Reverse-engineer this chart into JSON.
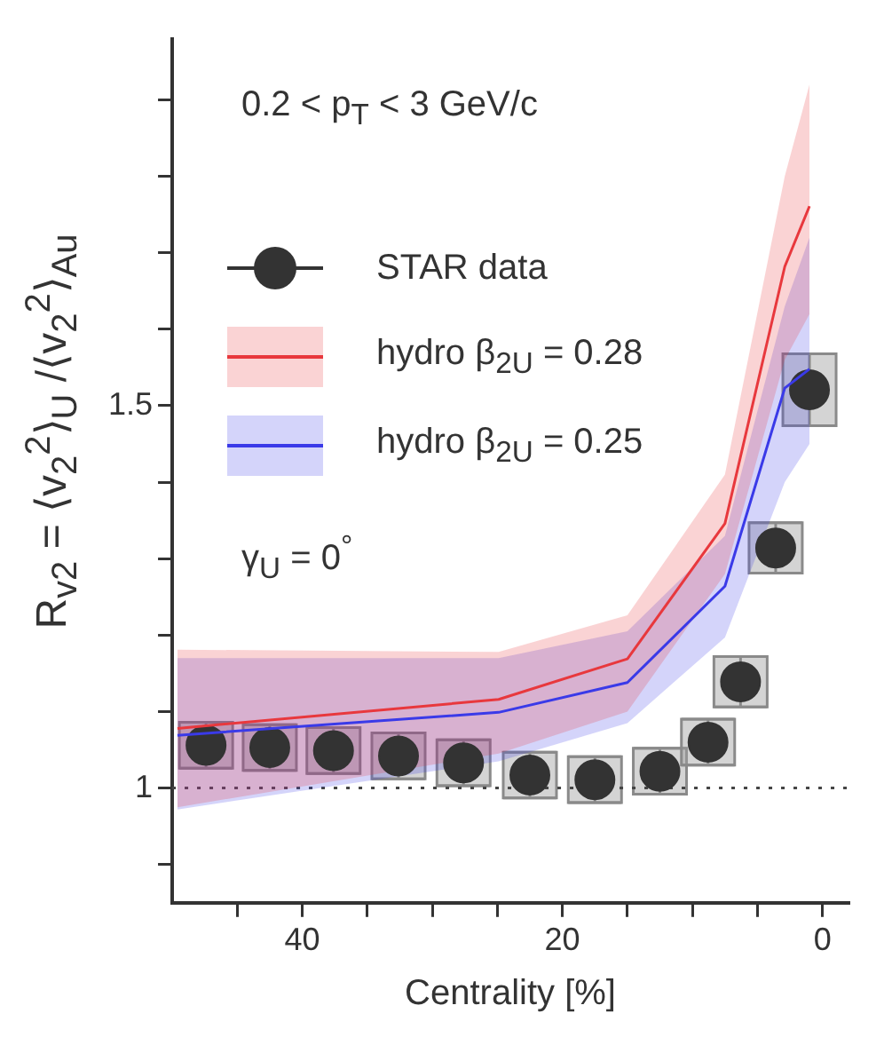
{
  "chart_data": {
    "type": "line",
    "xlabel": "Centrality [%]",
    "ylabel": "R$_{v2}$ = ⟨v$_{2}$$^{2}$⟩$_{U}$ /⟨v$_{2}$$^{2}$⟩$_{Au}$",
    "annotations": [
      "0.2 < p$_{T}$ < 3 GeV/c",
      "γ$_{U}$ = 0$^{°}$"
    ],
    "xlim": [
      50,
      -2
    ],
    "xticks": [
      {
        "value": 45,
        "label": null
      },
      40,
      {
        "value": 35,
        "label": null
      },
      {
        "value": 30,
        "label": null
      },
      {
        "value": 25,
        "label": null
      },
      20,
      {
        "value": 15,
        "label": null
      },
      {
        "value": 10,
        "label": null
      },
      {
        "value": 5,
        "label": null
      },
      0
    ],
    "ylim": [
      0.85,
      1.98
    ],
    "yticks": [
      {
        "value": 0.9,
        "label": null
      },
      1,
      {
        "value": 1.1,
        "label": null
      },
      {
        "value": 1.2,
        "label": null
      },
      {
        "value": 1.3,
        "label": null
      },
      {
        "value": 1.4,
        "label": null
      },
      1.5,
      {
        "value": 1.6,
        "label": null
      },
      {
        "value": 1.7,
        "label": null
      },
      {
        "value": 1.8,
        "label": null
      },
      {
        "value": 1.9,
        "label": null
      }
    ],
    "grid": false,
    "legend": "top left",
    "ref_lines": [
      {
        "axis": "y",
        "value": 1,
        "line_style": "dotted",
        "color": "#444444"
      }
    ],
    "series": [
      {
        "name": "STAR data",
        "type": "scatter",
        "marker": "circle",
        "color": "#333333",
        "x": [
          47.4,
          42.5,
          37.6,
          32.6,
          27.6,
          22.5,
          17.5,
          12.5,
          8.8,
          6.3,
          3.6,
          1.0
        ],
        "values": [
          1.056,
          1.053,
          1.049,
          1.042,
          1.033,
          1.017,
          1.011,
          1.022,
          1.06,
          1.139,
          1.314,
          1.521
        ],
        "errors": [
          0.03,
          0.03,
          0.03,
          0.03,
          0.03,
          0.03,
          0.03,
          0.03,
          0.03,
          0.033,
          0.033,
          0.047
        ]
      },
      {
        "name": "hydro β$_{2U}$ = 0.28",
        "color": "#e8383d",
        "x": [
          49.6,
          24.9,
          15,
          7.5,
          2.9,
          1
        ],
        "values": [
          1.078,
          1.116,
          1.169,
          1.346,
          1.682,
          1.761
        ],
        "lower": [
          0.975,
          1.045,
          1.1,
          1.28,
          1.56,
          1.62
        ],
        "upper": [
          1.181,
          1.178,
          1.226,
          1.41,
          1.8,
          1.92
        ]
      },
      {
        "name": "hydro β$_{2U}$ = 0.25",
        "color": "#3a3ae8",
        "x": [
          49.6,
          24.9,
          15,
          7.5,
          2.9,
          1
        ],
        "values": [
          1.069,
          1.099,
          1.138,
          1.264,
          1.523,
          1.548
        ],
        "lower": [
          0.972,
          1.035,
          1.085,
          1.197,
          1.4,
          1.45
        ],
        "upper": [
          1.17,
          1.17,
          1.205,
          1.33,
          1.63,
          1.72
        ]
      }
    ]
  }
}
